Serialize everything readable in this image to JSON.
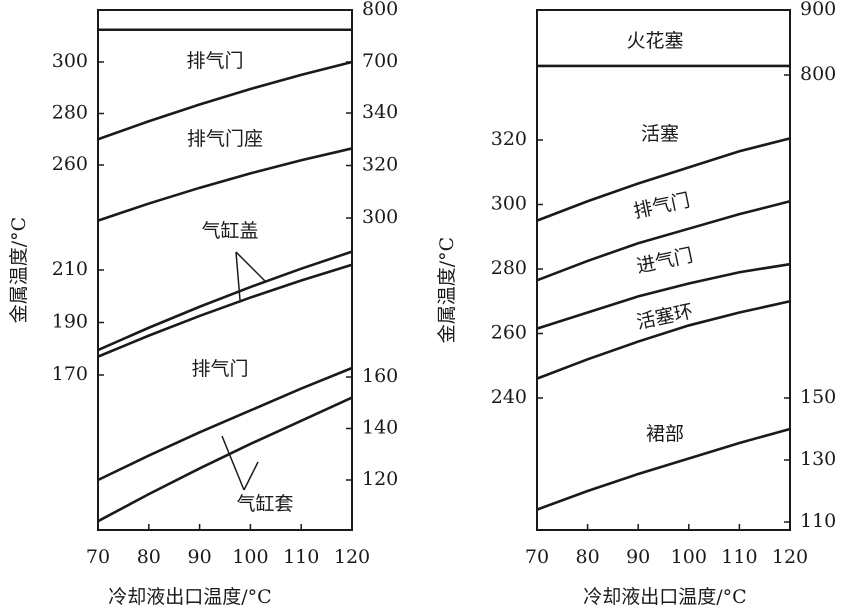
{
  "chart_data": [
    {
      "type": "line",
      "ylabel": "金属温度/°C",
      "xlabel": "冷却液出口温度/°C",
      "x": [
        70,
        80,
        90,
        100,
        110,
        120
      ],
      "xlim": [
        70,
        120
      ],
      "xticks": [
        70,
        80,
        90,
        100,
        110,
        120
      ],
      "color": "#1a1a1a",
      "y_axes": [
        {
          "side": "left",
          "ylim": [
            260,
            300
          ],
          "yticks": [
            260,
            280,
            300
          ]
        },
        {
          "side": "left",
          "ylim": [
            170,
            210
          ],
          "yticks": [
            170,
            190,
            210
          ]
        },
        {
          "side": "right",
          "ylim": [
            700,
            800
          ],
          "yticks": [
            700,
            800
          ]
        },
        {
          "side": "right",
          "ylim": [
            300,
            340
          ],
          "yticks": [
            300,
            320,
            340
          ]
        },
        {
          "side": "right",
          "ylim": [
            120,
            160
          ],
          "yticks": [
            120,
            140,
            160
          ]
        }
      ],
      "series": [
        {
          "axis": 2,
          "values": [
            762,
            762,
            762,
            762,
            762,
            762
          ]
        },
        {
          "axis": 0,
          "values": [
            270,
            277,
            283.5,
            289.5,
            295,
            300
          ]
        },
        {
          "axis": 3,
          "values": [
            299,
            305.5,
            311.5,
            317,
            322,
            326.5
          ]
        },
        {
          "axis": 1,
          "values": [
            179.5,
            188,
            196,
            203.5,
            210.5,
            217
          ]
        },
        {
          "axis": 1,
          "values": [
            177,
            185,
            192.5,
            199.5,
            206,
            212
          ]
        },
        {
          "axis": 4,
          "values": [
            120,
            129.5,
            138.5,
            147,
            155.5,
            163.5
          ]
        },
        {
          "axis": 4,
          "values": [
            104,
            114.5,
            124.5,
            134,
            143,
            152
          ]
        }
      ],
      "annotations": [
        "排气门",
        "排气门座",
        "气缸盖",
        "排气门",
        "气缸套"
      ]
    },
    {
      "type": "line",
      "ylabel": "金属温度/°C",
      "xlabel": "冷却液出口温度/°C",
      "x": [
        70,
        80,
        90,
        100,
        110,
        120
      ],
      "xlim": [
        70,
        120
      ],
      "xticks": [
        70,
        80,
        90,
        100,
        110,
        120
      ],
      "color": "#1a1a1a",
      "y_axes": [
        {
          "side": "left",
          "ylim": [
            240,
            320
          ],
          "yticks": [
            240,
            260,
            280,
            300,
            320
          ]
        },
        {
          "side": "right",
          "ylim": [
            800,
            900
          ],
          "yticks": [
            800,
            900
          ]
        },
        {
          "side": "right",
          "ylim": [
            110,
            150
          ],
          "yticks": [
            110,
            130,
            150
          ]
        }
      ],
      "series": [
        {
          "axis": 1,
          "values": [
            814,
            814,
            814,
            814,
            814,
            814
          ]
        },
        {
          "axis": 0,
          "values": [
            295,
            301,
            306.5,
            311.5,
            316.5,
            320.5
          ]
        },
        {
          "axis": 0,
          "values": [
            276.5,
            282.5,
            288,
            292.5,
            297,
            301
          ]
        },
        {
          "axis": 0,
          "values": [
            261.5,
            266.5,
            271.5,
            275.5,
            279,
            281.5
          ]
        },
        {
          "axis": 0,
          "values": [
            246,
            252,
            257.5,
            262.5,
            266.5,
            270
          ]
        },
        {
          "axis": 2,
          "values": [
            114,
            120,
            125.5,
            130.5,
            135.5,
            140
          ]
        }
      ],
      "annotations": [
        "火花塞",
        "活塞",
        "排气门",
        "进气门",
        "活塞环",
        "裙部"
      ]
    }
  ]
}
